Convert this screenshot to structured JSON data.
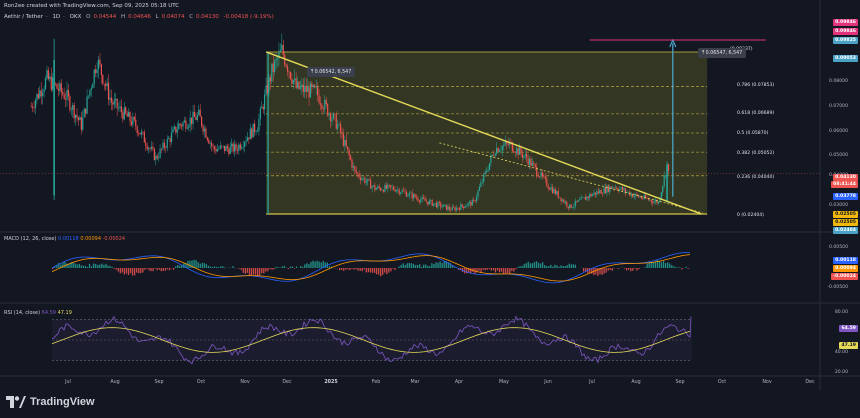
{
  "credit": "Ron2ee created with TradingView.com, Sep 09, 2025 05:18 UTC",
  "symbol_line": {
    "name": "Aethir / Tether",
    "interval": "1D",
    "exchange": "OKX",
    "o_label": "O",
    "o": "0.04544",
    "h_label": "H",
    "h": "0.04646",
    "l_label": "L",
    "l": "0.04074",
    "c_label": "C",
    "c": "0.04130",
    "change": "-0.00418 (-9.19%)"
  },
  "colors": {
    "up": "#26a69a",
    "down": "#ef5350",
    "trend": "#e5d95a",
    "fib": "#d4c44a",
    "target": "#4aa3c7",
    "magenta": "#e0337c",
    "macd": "#2962ff",
    "signal": "#ff9800",
    "rsi": "#7e57c2",
    "rsi_ma": "#e5d95a",
    "zone": "#3d4224"
  },
  "price_axis": {
    "ticks": [
      "0.08000",
      "0.07000",
      "0.06000",
      "0.05000",
      "0.04000",
      "0.03000"
    ],
    "labels": [
      {
        "text": "0.09846",
        "color": "#e0337c"
      },
      {
        "text": "0.09846",
        "color": "#e0337c"
      },
      {
        "text": "0.09825",
        "color": "#4aa3c7"
      },
      {
        "text": "0.09053",
        "color": "#4aa3c7"
      },
      {
        "text": "0.04130",
        "color": "#ef5350"
      },
      {
        "text": "08:41:44",
        "color": "#ef5350"
      },
      {
        "text": "0.03778",
        "color": "#2962ff"
      },
      {
        "text": "0.02505",
        "color": "#f0b90b"
      },
      {
        "text": "0.02505",
        "color": "#f0b90b"
      },
      {
        "text": "0.02404",
        "color": "#4aa3c7"
      }
    ]
  },
  "fib_levels": [
    {
      "label": "0.786 (0.07853)",
      "value": 0.07853
    },
    {
      "label": "0.618 (0.06689)",
      "value": 0.06689
    },
    {
      "label": "0.5 (0.05870)",
      "value": 0.0587
    },
    {
      "label": "0.382 (0.05052)",
      "value": 0.05052
    },
    {
      "label": "0.236 (0.04040)",
      "value": 0.0404
    },
    {
      "label": "0 (0.02404)",
      "value": 0.02404
    }
  ],
  "fib_top_label": "(0.09337)",
  "annotations": {
    "left_measure": "0.06542, 6,547",
    "right_measure": "0.06547, 6,547"
  },
  "macd": {
    "legend_name": "MACD (12, 26, close)",
    "v1": "0.00118",
    "v2": "0.00094",
    "v3": "-0.00024",
    "ticks": [
      "0.00500",
      "-0.00500"
    ],
    "labels": [
      {
        "text": "0.00118",
        "color": "#2962ff"
      },
      {
        "text": "0.00094",
        "color": "#ff9800"
      },
      {
        "text": "-0.00024",
        "color": "#ef5350"
      }
    ]
  },
  "rsi": {
    "legend_name": "RSI (14, close)",
    "v1": "64.59",
    "v2": "47.19",
    "ticks": [
      "80.00",
      "40.00",
      "20.00"
    ],
    "labels": [
      {
        "text": "64.59",
        "color": "#7e57c2"
      },
      {
        "text": "47.19",
        "color": "#e5d95a"
      }
    ]
  },
  "x_axis": [
    "Jul",
    "Aug",
    "Sep",
    "Oct",
    "Nov",
    "Dec",
    "2025",
    "Feb",
    "Mar",
    "Apr",
    "May",
    "Jun",
    "Jul",
    "Aug",
    "Sep",
    "Oct",
    "Nov",
    "Dec"
  ],
  "brand": "TradingView",
  "chart_data": {
    "type": "candlestick",
    "title": "Aethir / Tether · 1D · OKX",
    "x_range": [
      "Jul 2024",
      "Dec 2025"
    ],
    "price_range": [
      0.02,
      0.1
    ],
    "close_path": [
      [
        "2024-06-20",
        0.07
      ],
      [
        "2024-07-01",
        0.082
      ],
      [
        "2024-07-15",
        0.074
      ],
      [
        "2024-07-25",
        0.062
      ],
      [
        "2024-08-05",
        0.09
      ],
      [
        "2024-08-15",
        0.072
      ],
      [
        "2024-09-01",
        0.062
      ],
      [
        "2024-09-15",
        0.048
      ],
      [
        "2024-10-01",
        0.062
      ],
      [
        "2024-10-15",
        0.066
      ],
      [
        "2024-10-25",
        0.052
      ],
      [
        "2024-11-10",
        0.052
      ],
      [
        "2024-11-25",
        0.062
      ],
      [
        "2024-12-05",
        0.085
      ],
      [
        "2024-12-12",
        0.094
      ],
      [
        "2024-12-22",
        0.078
      ],
      [
        "2025-01-05",
        0.076
      ],
      [
        "2025-01-20",
        0.062
      ],
      [
        "2025-02-01",
        0.042
      ],
      [
        "2025-02-15",
        0.035
      ],
      [
        "2025-03-01",
        0.035
      ],
      [
        "2025-03-20",
        0.03
      ],
      [
        "2025-04-10",
        0.026
      ],
      [
        "2025-04-25",
        0.029
      ],
      [
        "2025-05-10",
        0.052
      ],
      [
        "2025-05-20",
        0.054
      ],
      [
        "2025-06-01",
        0.048
      ],
      [
        "2025-06-15",
        0.037
      ],
      [
        "2025-07-01",
        0.027
      ],
      [
        "2025-07-15",
        0.032
      ],
      [
        "2025-08-01",
        0.036
      ],
      [
        "2025-08-15",
        0.032
      ],
      [
        "2025-09-01",
        0.029
      ],
      [
        "2025-09-07",
        0.045
      ],
      [
        "2025-09-08",
        0.0413
      ]
    ],
    "trendline": {
      "from": [
        "2024-12-01",
        0.0934
      ],
      "to": [
        "2025-10-01",
        0.024
      ]
    },
    "support": 0.02404,
    "target": 0.09053
  }
}
